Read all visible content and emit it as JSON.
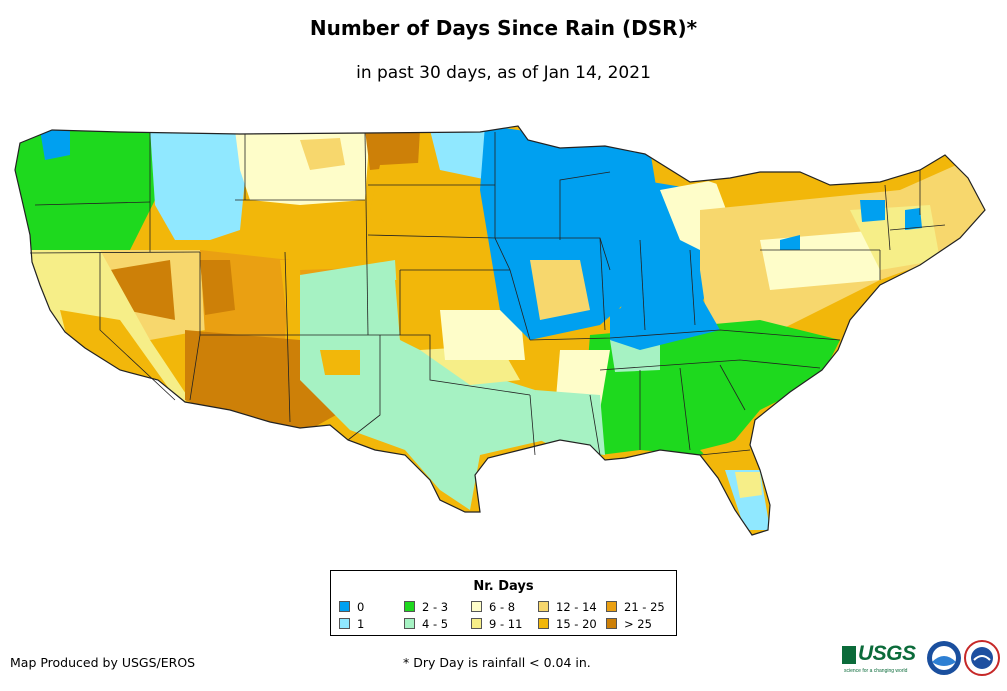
{
  "title": "Number of Days Since Rain (DSR)*",
  "subtitle": "in past 30 days, as of Jan 14, 2021",
  "legend": {
    "title": "Nr. Days",
    "items": [
      {
        "label": "0",
        "color": "#00a0f0"
      },
      {
        "label": "1",
        "color": "#90e8ff"
      },
      {
        "label": "2 - 3",
        "color": "#1ed91e"
      },
      {
        "label": "4 - 5",
        "color": "#a6f2c3"
      },
      {
        "label": "6 - 8",
        "color": "#fefdc9"
      },
      {
        "label": "9 - 11",
        "color": "#f6ee88"
      },
      {
        "label": "12 - 14",
        "color": "#f7d76d"
      },
      {
        "label": "15 - 20",
        "color": "#f2b70a"
      },
      {
        "label": "21 - 25",
        "color": "#eaa012"
      },
      {
        "label": "> 25",
        "color": "#cd8008"
      }
    ]
  },
  "credit": "Map Produced by USGS/EROS",
  "footnote": "* Dry Day is rainfall < 0.04 in.",
  "logos": {
    "usgs": "USGS",
    "usgs_tagline": "science for a changing world"
  }
}
